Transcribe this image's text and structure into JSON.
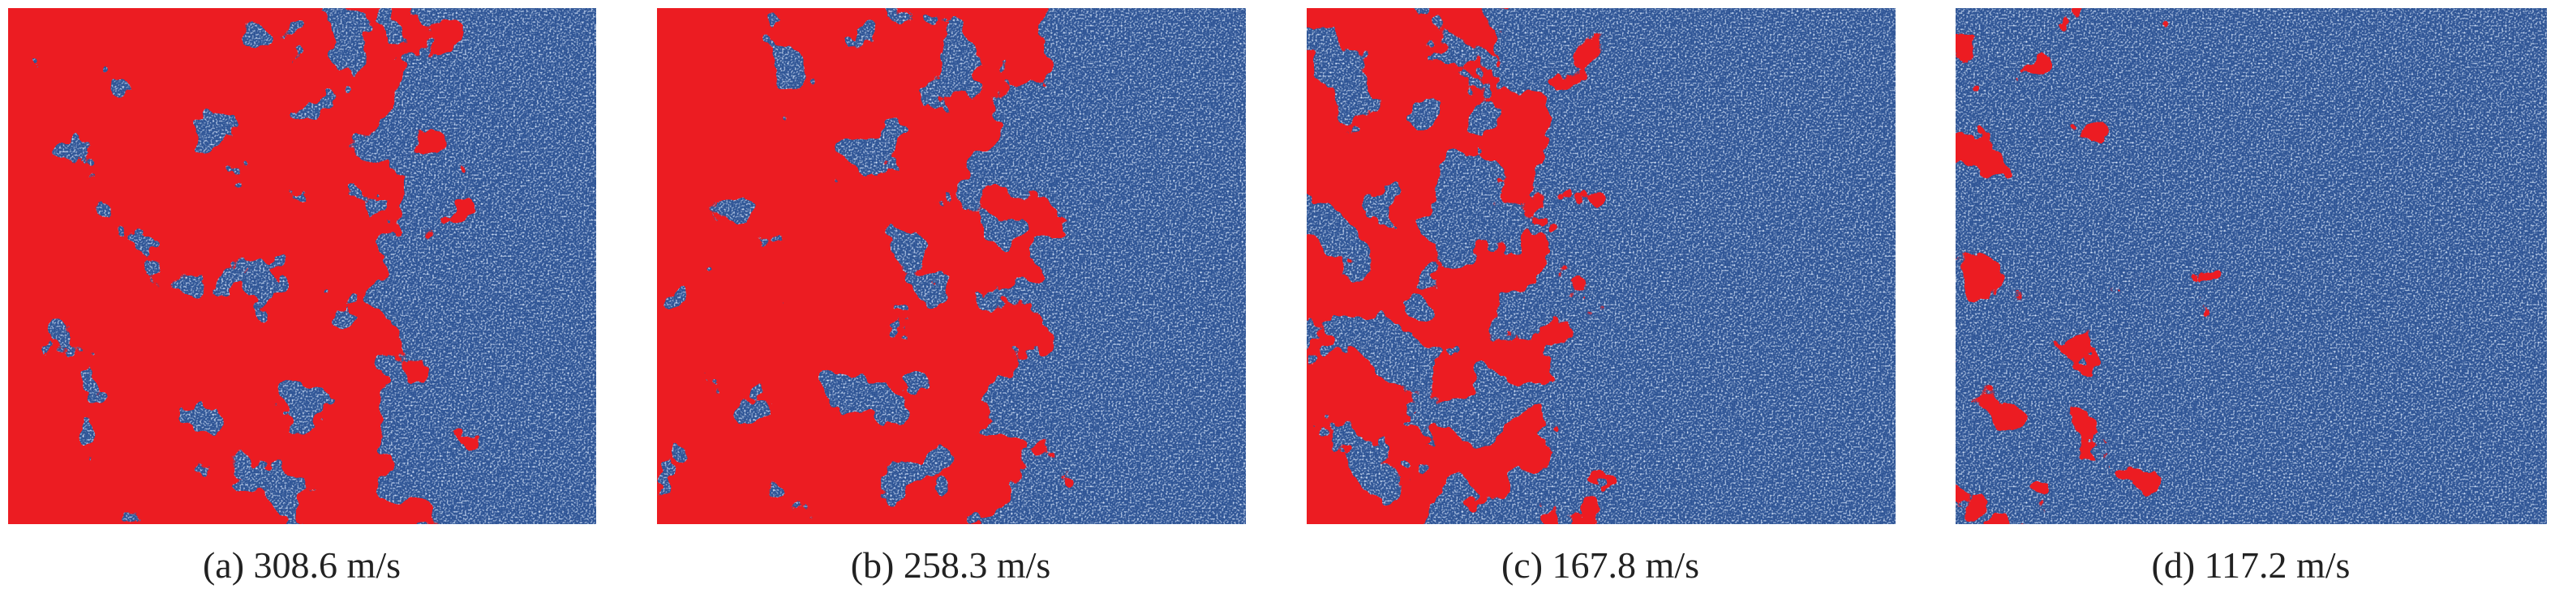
{
  "panels": [
    {
      "caption": "(a) 308.6 m/s"
    },
    {
      "caption": "(b) 258.3 m/s"
    },
    {
      "caption": "(c) 167.8 m/s"
    },
    {
      "caption": "(d) 117.2 m/s"
    }
  ]
}
